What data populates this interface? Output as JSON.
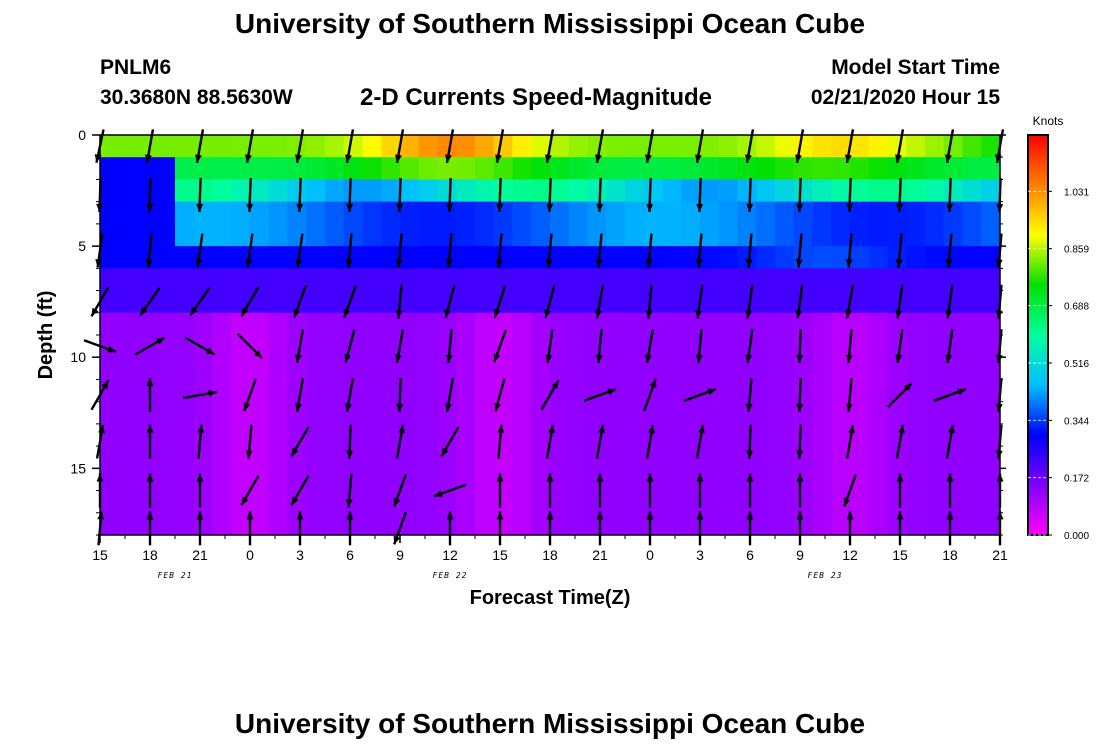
{
  "header": {
    "title": "University of Southern Mississippi Ocean Cube",
    "station_id": "PNLM6",
    "coordinates": "30.3680N 88.5630W",
    "subtitle": "2-D Currents Speed-Magnitude",
    "model_start_label": "Model Start Time",
    "model_start_value": "02/21/2020 Hour 15"
  },
  "footer": {
    "title": "University of Southern Mississippi Ocean Cube"
  },
  "chart_data": {
    "type": "heatmap",
    "xlabel": "Forecast Time(Z)",
    "ylabel": "Depth (ft)",
    "x_tick_labels": [
      "15",
      "18",
      "21",
      "0",
      "3",
      "6",
      "9",
      "12",
      "15",
      "18",
      "21",
      "0",
      "3",
      "6",
      "9",
      "12",
      "15",
      "18",
      "21"
    ],
    "date_labels": [
      {
        "label": "FEB 21",
        "hour_index": 1.5
      },
      {
        "label": "FEB 22",
        "hour_index": 7
      },
      {
        "label": "FEB 23",
        "hour_index": 14.5
      }
    ],
    "y_ticks": [
      0,
      5,
      10,
      15
    ],
    "ylim": [
      0,
      18
    ],
    "x_range_steps": [
      0,
      18
    ],
    "colorbar": {
      "title": "Knots",
      "ticks": [
        0.0,
        0.172,
        0.344,
        0.516,
        0.688,
        0.859,
        1.031
      ],
      "tick_labels": [
        "0.000",
        "0.172",
        "0.344",
        "0.516",
        "0.688",
        "0.859",
        "1.031"
      ],
      "range": [
        0,
        1.2
      ],
      "colors": [
        "#ff00ff",
        "#8000ff",
        "#0000ff",
        "#00c0ff",
        "#00ffa0",
        "#00e000",
        "#ffff00",
        "#ff8000",
        "#ff0000"
      ]
    },
    "vectors": {
      "depths_ft": [
        0.5,
        2.7,
        5.2,
        7.5,
        9.5,
        11.7,
        13.8,
        16.0,
        17.7
      ],
      "angles_deg": [
        [
          -168,
          -170,
          -170,
          -170,
          -170,
          -170,
          -170,
          -170,
          -170,
          -170,
          -170,
          -170,
          -170,
          -170,
          -170,
          -170,
          -170,
          -170,
          -170
        ],
        [
          -178,
          -178,
          -178,
          -178,
          -178,
          -178,
          -178,
          -178,
          -178,
          -178,
          -178,
          -178,
          -178,
          -178,
          -178,
          -178,
          -178,
          -178,
          -178
        ],
        [
          -172,
          -175,
          -172,
          -172,
          -172,
          -175,
          -175,
          -175,
          -175,
          -175,
          -175,
          -175,
          -175,
          -175,
          -175,
          -175,
          -175,
          -175,
          -175
        ],
        [
          -150,
          -145,
          -145,
          -150,
          -160,
          -160,
          -175,
          -165,
          -162,
          -165,
          -170,
          -175,
          -172,
          -172,
          -172,
          -170,
          -172,
          -172,
          -175
        ],
        [
          110,
          60,
          120,
          135,
          -170,
          -165,
          -170,
          -175,
          -160,
          -172,
          -175,
          -170,
          -175,
          -172,
          -178,
          -175,
          -172,
          -172,
          -175
        ],
        [
          30,
          0,
          80,
          -160,
          -170,
          -170,
          -178,
          -170,
          -165,
          30,
          70,
          20,
          70,
          -175,
          -178,
          -175,
          45,
          70,
          -175
        ],
        [
          10,
          0,
          5,
          -175,
          -150,
          -178,
          10,
          -150,
          5,
          10,
          10,
          10,
          10,
          -178,
          -178,
          10,
          10,
          10,
          -175
        ],
        [
          0,
          0,
          0,
          -150,
          -150,
          -175,
          -160,
          -110,
          0,
          0,
          0,
          0,
          0,
          0,
          0,
          -160,
          0,
          0,
          0
        ],
        [
          5,
          0,
          0,
          0,
          0,
          0,
          -160,
          0,
          0,
          0,
          0,
          0,
          0,
          0,
          0,
          0,
          0,
          0,
          0
        ]
      ]
    }
  }
}
